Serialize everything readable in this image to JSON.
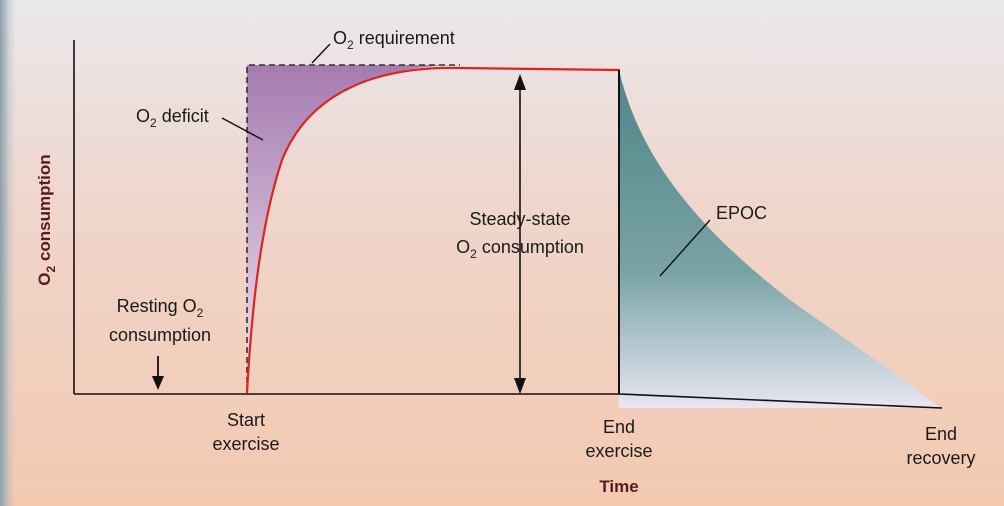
{
  "y_axis_title": "O",
  "y_axis_title_sub": "2",
  "y_axis_title_rest": " consumption",
  "x_axis_title": "Time",
  "labels": {
    "o2_requirement_prefix": "O",
    "o2_requirement_sub": "2",
    "o2_requirement_rest": " requirement",
    "o2_deficit_prefix": "O",
    "o2_deficit_sub": "2",
    "o2_deficit_rest": " deficit",
    "resting_line1_prefix": "Resting O",
    "resting_line1_sub": "2",
    "resting_line2": "consumption",
    "steady_line1": "Steady-state",
    "steady_line2_prefix": "O",
    "steady_line2_sub": "2",
    "steady_line2_rest": " consumption",
    "epoc": "EPOC",
    "start_line1": "Start",
    "start_line2": "exercise",
    "end_exercise_line1": "End",
    "end_exercise_line2": "exercise",
    "end_recovery_line1": "End",
    "end_recovery_line2": "recovery"
  },
  "colors": {
    "deficit_fill": "#a77fb2",
    "epoc_fill": "#5e8f91",
    "curve": "#e0231e",
    "axis": "#111111"
  }
}
